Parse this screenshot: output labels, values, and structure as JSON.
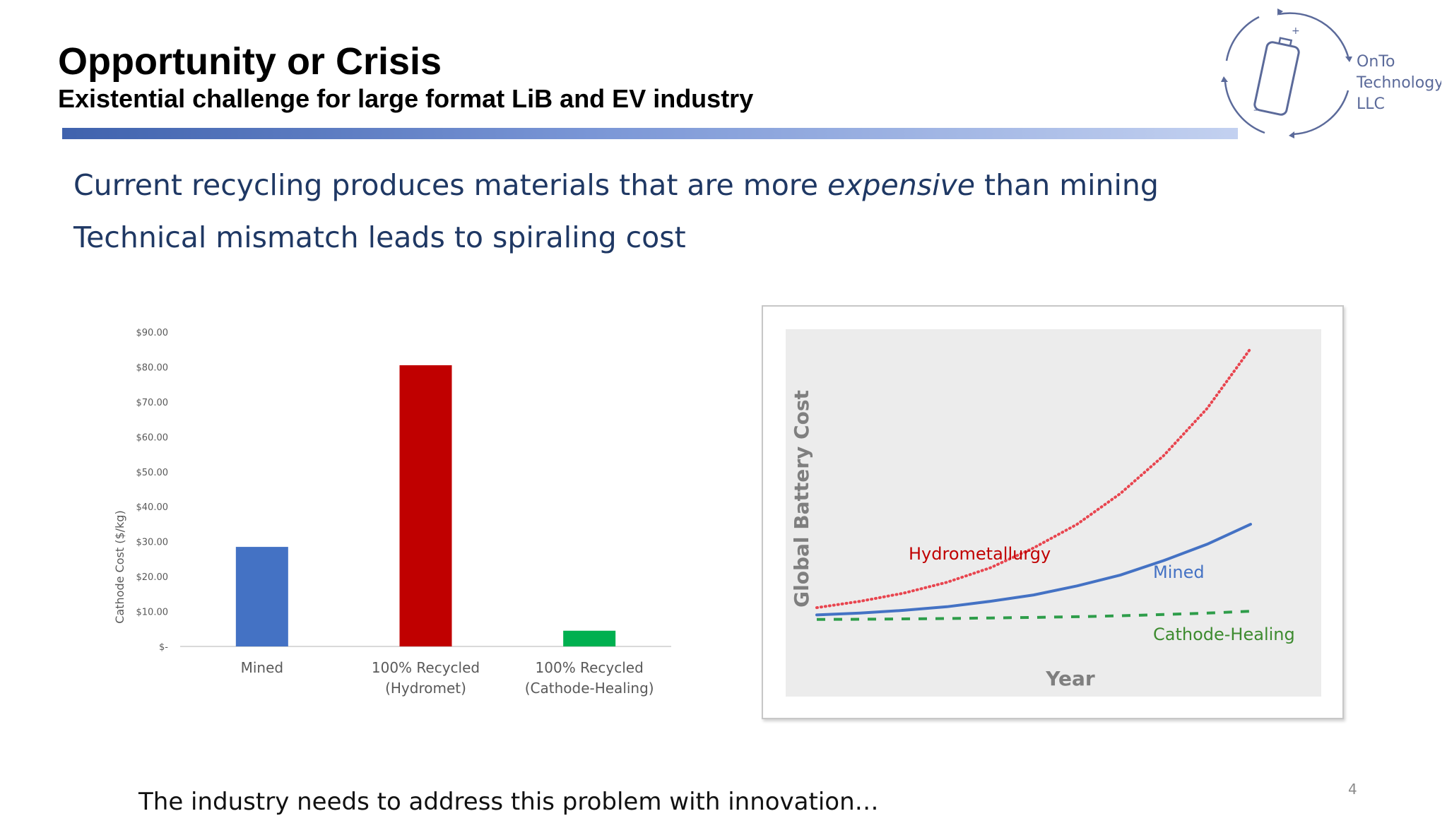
{
  "slide": {
    "title": "Opportunity or Crisis",
    "subtitle": "Existential challenge for large format LiB and EV industry",
    "bullets": [
      {
        "before": "Current recycling produces materials that are more ",
        "emphasis": "expensive",
        "after": " than mining"
      },
      {
        "text": "Technical mismatch leads to spiraling cost"
      }
    ],
    "footer": "The industry needs to address this problem with innovation…",
    "page_number": "4",
    "logo": {
      "lines": [
        "OnTo",
        "Technology",
        "LLC"
      ],
      "icon": "battery-cycle-icon"
    }
  },
  "chart_data": [
    {
      "type": "bar",
      "title": "",
      "xlabel": "",
      "ylabel": "Cathode Cost ($/kg)",
      "ylim": [
        0,
        90
      ],
      "yticks": [
        0,
        10,
        20,
        30,
        40,
        50,
        60,
        70,
        80,
        90
      ],
      "ytick_labels": [
        "$-",
        "$10.00",
        "$20.00",
        "$30.00",
        "$40.00",
        "$50.00",
        "$60.00",
        "$70.00",
        "$80.00",
        "$90.00"
      ],
      "categories": [
        [
          "Mined"
        ],
        [
          "100% Recycled",
          "(Hydromet)"
        ],
        [
          "100% Recycled",
          "(Cathode-Healing)"
        ]
      ],
      "values": [
        28.5,
        80.5,
        4.5
      ],
      "colors": [
        "#4472c4",
        "#c00000",
        "#00b050"
      ],
      "grid": false,
      "legend": "none"
    },
    {
      "type": "line",
      "title": "",
      "xlabel": "Year",
      "ylabel": "Global Battery Cost",
      "x": [
        0,
        1,
        2,
        3,
        4,
        5,
        6,
        7,
        8,
        9,
        10
      ],
      "series": [
        {
          "name": "Hydrometallurgy",
          "color": "#e8454f",
          "style": "dotted",
          "label_color": "#c00000",
          "values": [
            1.4,
            1.75,
            2.2,
            2.8,
            3.6,
            4.7,
            6.0,
            7.7,
            9.8,
            12.4,
            15.7
          ]
        },
        {
          "name": "Mined",
          "color": "#4472c4",
          "style": "solid",
          "label_color": "#4472c4",
          "values": [
            1.0,
            1.1,
            1.25,
            1.45,
            1.75,
            2.1,
            2.6,
            3.2,
            4.0,
            4.9,
            6.0
          ]
        },
        {
          "name": "Cathode-Healing",
          "color": "#2e9d4a",
          "style": "dashed",
          "label_color": "#3d8b2f",
          "values": [
            0.75,
            0.76,
            0.78,
            0.8,
            0.83,
            0.86,
            0.9,
            0.95,
            1.02,
            1.1,
            1.2
          ]
        }
      ],
      "ylim": [
        0,
        17
      ],
      "background": "#ececec",
      "grid": false,
      "legend": "inline-labels"
    }
  ]
}
